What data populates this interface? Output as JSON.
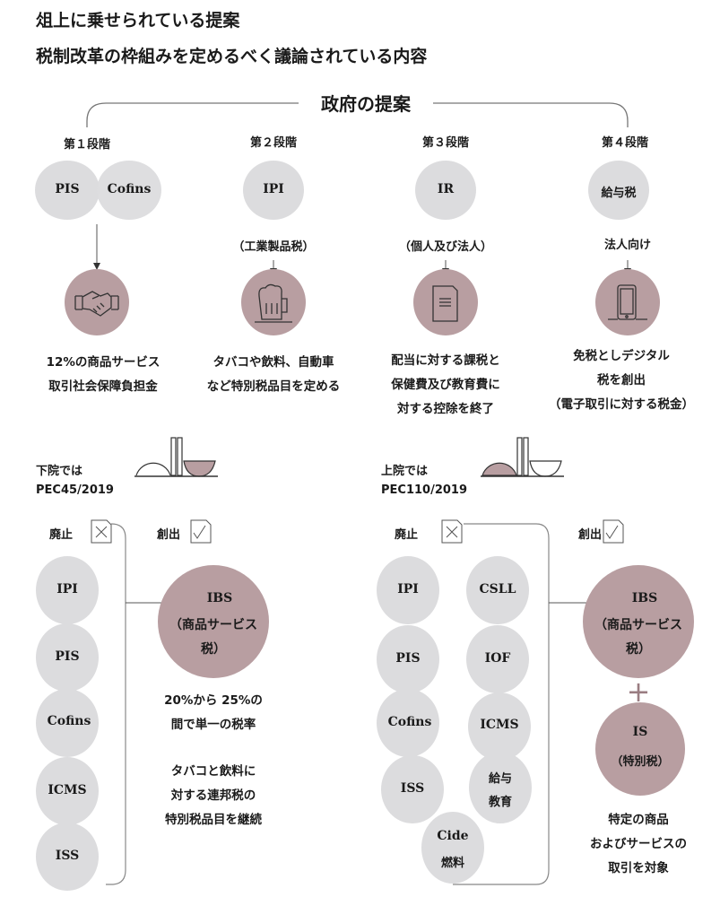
{
  "title": {
    "line1": "俎上に乗せられている提案",
    "line2": "税制改革の枠組みを定めるべく議論されている内容"
  },
  "colors": {
    "gray_circle": "#dcdcde",
    "mauve_circle": "#b89ea1",
    "line": "#777777"
  },
  "government": {
    "heading": "政府の提案",
    "stages": [
      {
        "label": "第１段階",
        "taxes": [
          "PIS",
          "Cofins"
        ],
        "sublabel": "",
        "icon": "handshake-icon",
        "desc": [
          "12%の商品サービス",
          "取引社会保障負担金"
        ]
      },
      {
        "label": "第２段階",
        "taxes": [
          "IPI"
        ],
        "sublabel": "（工業製品税）",
        "icon": "beer-mug-icon",
        "desc": [
          "タバコや飲料、自動車",
          "など特別税品目を定める"
        ]
      },
      {
        "label": "第３段階",
        "taxes": [
          "IR"
        ],
        "sublabel": "（個人及び法人）",
        "icon": "document-icon",
        "desc": [
          "配当に対する課税と",
          "保健費及び教育費に",
          "対する控除を終了"
        ]
      },
      {
        "label": "第４段階",
        "taxes": [
          "給与税"
        ],
        "sublabel": "法人向け",
        "icon": "smartphone-icon",
        "desc": [
          "免税としデジタル",
          "税を創出",
          "（電子取引に対する税金）"
        ]
      }
    ]
  },
  "lower_house": {
    "label1": "下院では",
    "label2": "PEC45/2019",
    "icon": "congress-building-icon",
    "abolish_label": "廃止",
    "create_label": "創出",
    "abolished": [
      "IPI",
      "PIS",
      "Cofins",
      "ICMS",
      "ISS"
    ],
    "created": {
      "name": "IBS",
      "sub1": "（商品サービス",
      "sub2": "税）"
    },
    "notes": [
      "20%から 25%の",
      "間で単一の税率",
      "タバコと飲料に",
      "対する連邦税の",
      "特別税品目を継続"
    ]
  },
  "senate": {
    "label1": "上院では",
    "label2": "PEC110/2019",
    "icon": "congress-building-icon",
    "abolish_label": "廃止",
    "create_label": "創出",
    "abolished": [
      "IPI",
      "PIS",
      "Cofins",
      "ISS",
      "CSLL",
      "IOF",
      "ICMS",
      "給与",
      "教育",
      "Cide",
      "燃料"
    ],
    "created": {
      "name": "IBS",
      "sub1": "（商品サービス",
      "sub2": "税）"
    },
    "plus": "+",
    "special": {
      "name": "IS",
      "sub": "（特別税）"
    },
    "notes": [
      "特定の商品",
      "およびサービスの",
      "取引を対象"
    ]
  }
}
